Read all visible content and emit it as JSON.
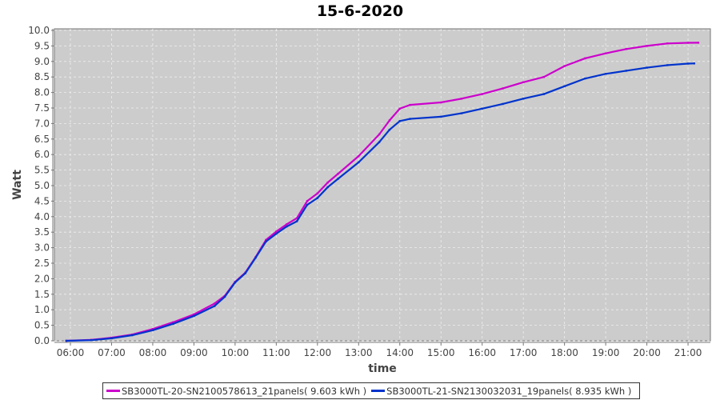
{
  "chart_data": {
    "type": "line",
    "title": "15-6-2020",
    "xlabel": "time",
    "ylabel": "Watt",
    "ylim": [
      0,
      10
    ],
    "yticks": [
      "0.0",
      "0.5",
      "1.0",
      "1.5",
      "2.0",
      "2.5",
      "3.0",
      "3.5",
      "4.0",
      "4.5",
      "5.0",
      "5.5",
      "6.0",
      "6.5",
      "7.0",
      "7.5",
      "8.0",
      "8.5",
      "9.0",
      "9.5",
      "10.0"
    ],
    "xticks": [
      "06:00",
      "07:00",
      "08:00",
      "09:00",
      "10:00",
      "11:00",
      "12:00",
      "13:00",
      "14:00",
      "15:00",
      "16:00",
      "17:00",
      "18:00",
      "19:00",
      "20:00",
      "21:00"
    ],
    "xlim": [
      "05:36",
      "21:32"
    ],
    "grid": true,
    "legend_position": "bottom",
    "background": "#cccccc",
    "series": [
      {
        "name": "SB3000TL-20-SN2100578613_21panels( 9.603 kWh )",
        "color": "#cc00cc",
        "points": [
          [
            "05:54",
            0.0
          ],
          [
            "06:30",
            0.03
          ],
          [
            "07:00",
            0.1
          ],
          [
            "07:30",
            0.2
          ],
          [
            "08:00",
            0.38
          ],
          [
            "08:30",
            0.6
          ],
          [
            "09:00",
            0.85
          ],
          [
            "09:30",
            1.2
          ],
          [
            "09:45",
            1.45
          ],
          [
            "10:00",
            1.9
          ],
          [
            "10:15",
            2.2
          ],
          [
            "10:30",
            2.7
          ],
          [
            "10:45",
            3.25
          ],
          [
            "11:00",
            3.52
          ],
          [
            "11:15",
            3.75
          ],
          [
            "11:30",
            3.95
          ],
          [
            "11:45",
            4.5
          ],
          [
            "12:00",
            4.75
          ],
          [
            "12:15",
            5.1
          ],
          [
            "12:30",
            5.38
          ],
          [
            "13:00",
            5.95
          ],
          [
            "13:30",
            6.65
          ],
          [
            "13:45",
            7.1
          ],
          [
            "14:00",
            7.48
          ],
          [
            "14:15",
            7.6
          ],
          [
            "15:00",
            7.68
          ],
          [
            "15:30",
            7.8
          ],
          [
            "16:00",
            7.95
          ],
          [
            "16:30",
            8.13
          ],
          [
            "17:00",
            8.33
          ],
          [
            "17:30",
            8.5
          ],
          [
            "18:00",
            8.85
          ],
          [
            "18:30",
            9.1
          ],
          [
            "19:00",
            9.26
          ],
          [
            "19:30",
            9.4
          ],
          [
            "20:00",
            9.5
          ],
          [
            "20:30",
            9.58
          ],
          [
            "21:00",
            9.6
          ],
          [
            "21:15",
            9.603
          ]
        ]
      },
      {
        "name": "SB3000TL-21-SN2130032031_19panels( 8.935 kWh )",
        "color": "#0033cc",
        "points": [
          [
            "05:54",
            0.0
          ],
          [
            "06:30",
            0.02
          ],
          [
            "07:00",
            0.08
          ],
          [
            "07:30",
            0.18
          ],
          [
            "08:00",
            0.34
          ],
          [
            "08:30",
            0.55
          ],
          [
            "09:00",
            0.8
          ],
          [
            "09:30",
            1.12
          ],
          [
            "09:45",
            1.42
          ],
          [
            "10:00",
            1.88
          ],
          [
            "10:15",
            2.18
          ],
          [
            "10:30",
            2.68
          ],
          [
            "10:45",
            3.2
          ],
          [
            "11:00",
            3.45
          ],
          [
            "11:15",
            3.68
          ],
          [
            "11:30",
            3.85
          ],
          [
            "11:45",
            4.38
          ],
          [
            "12:00",
            4.6
          ],
          [
            "12:15",
            4.95
          ],
          [
            "12:30",
            5.22
          ],
          [
            "13:00",
            5.75
          ],
          [
            "13:30",
            6.4
          ],
          [
            "13:45",
            6.8
          ],
          [
            "14:00",
            7.08
          ],
          [
            "14:15",
            7.15
          ],
          [
            "15:00",
            7.22
          ],
          [
            "15:30",
            7.33
          ],
          [
            "16:00",
            7.48
          ],
          [
            "16:30",
            7.63
          ],
          [
            "17:00",
            7.8
          ],
          [
            "17:30",
            7.95
          ],
          [
            "18:00",
            8.2
          ],
          [
            "18:30",
            8.45
          ],
          [
            "19:00",
            8.6
          ],
          [
            "19:30",
            8.7
          ],
          [
            "20:00",
            8.8
          ],
          [
            "20:30",
            8.88
          ],
          [
            "21:00",
            8.93
          ],
          [
            "21:09",
            8.935
          ]
        ]
      }
    ]
  }
}
